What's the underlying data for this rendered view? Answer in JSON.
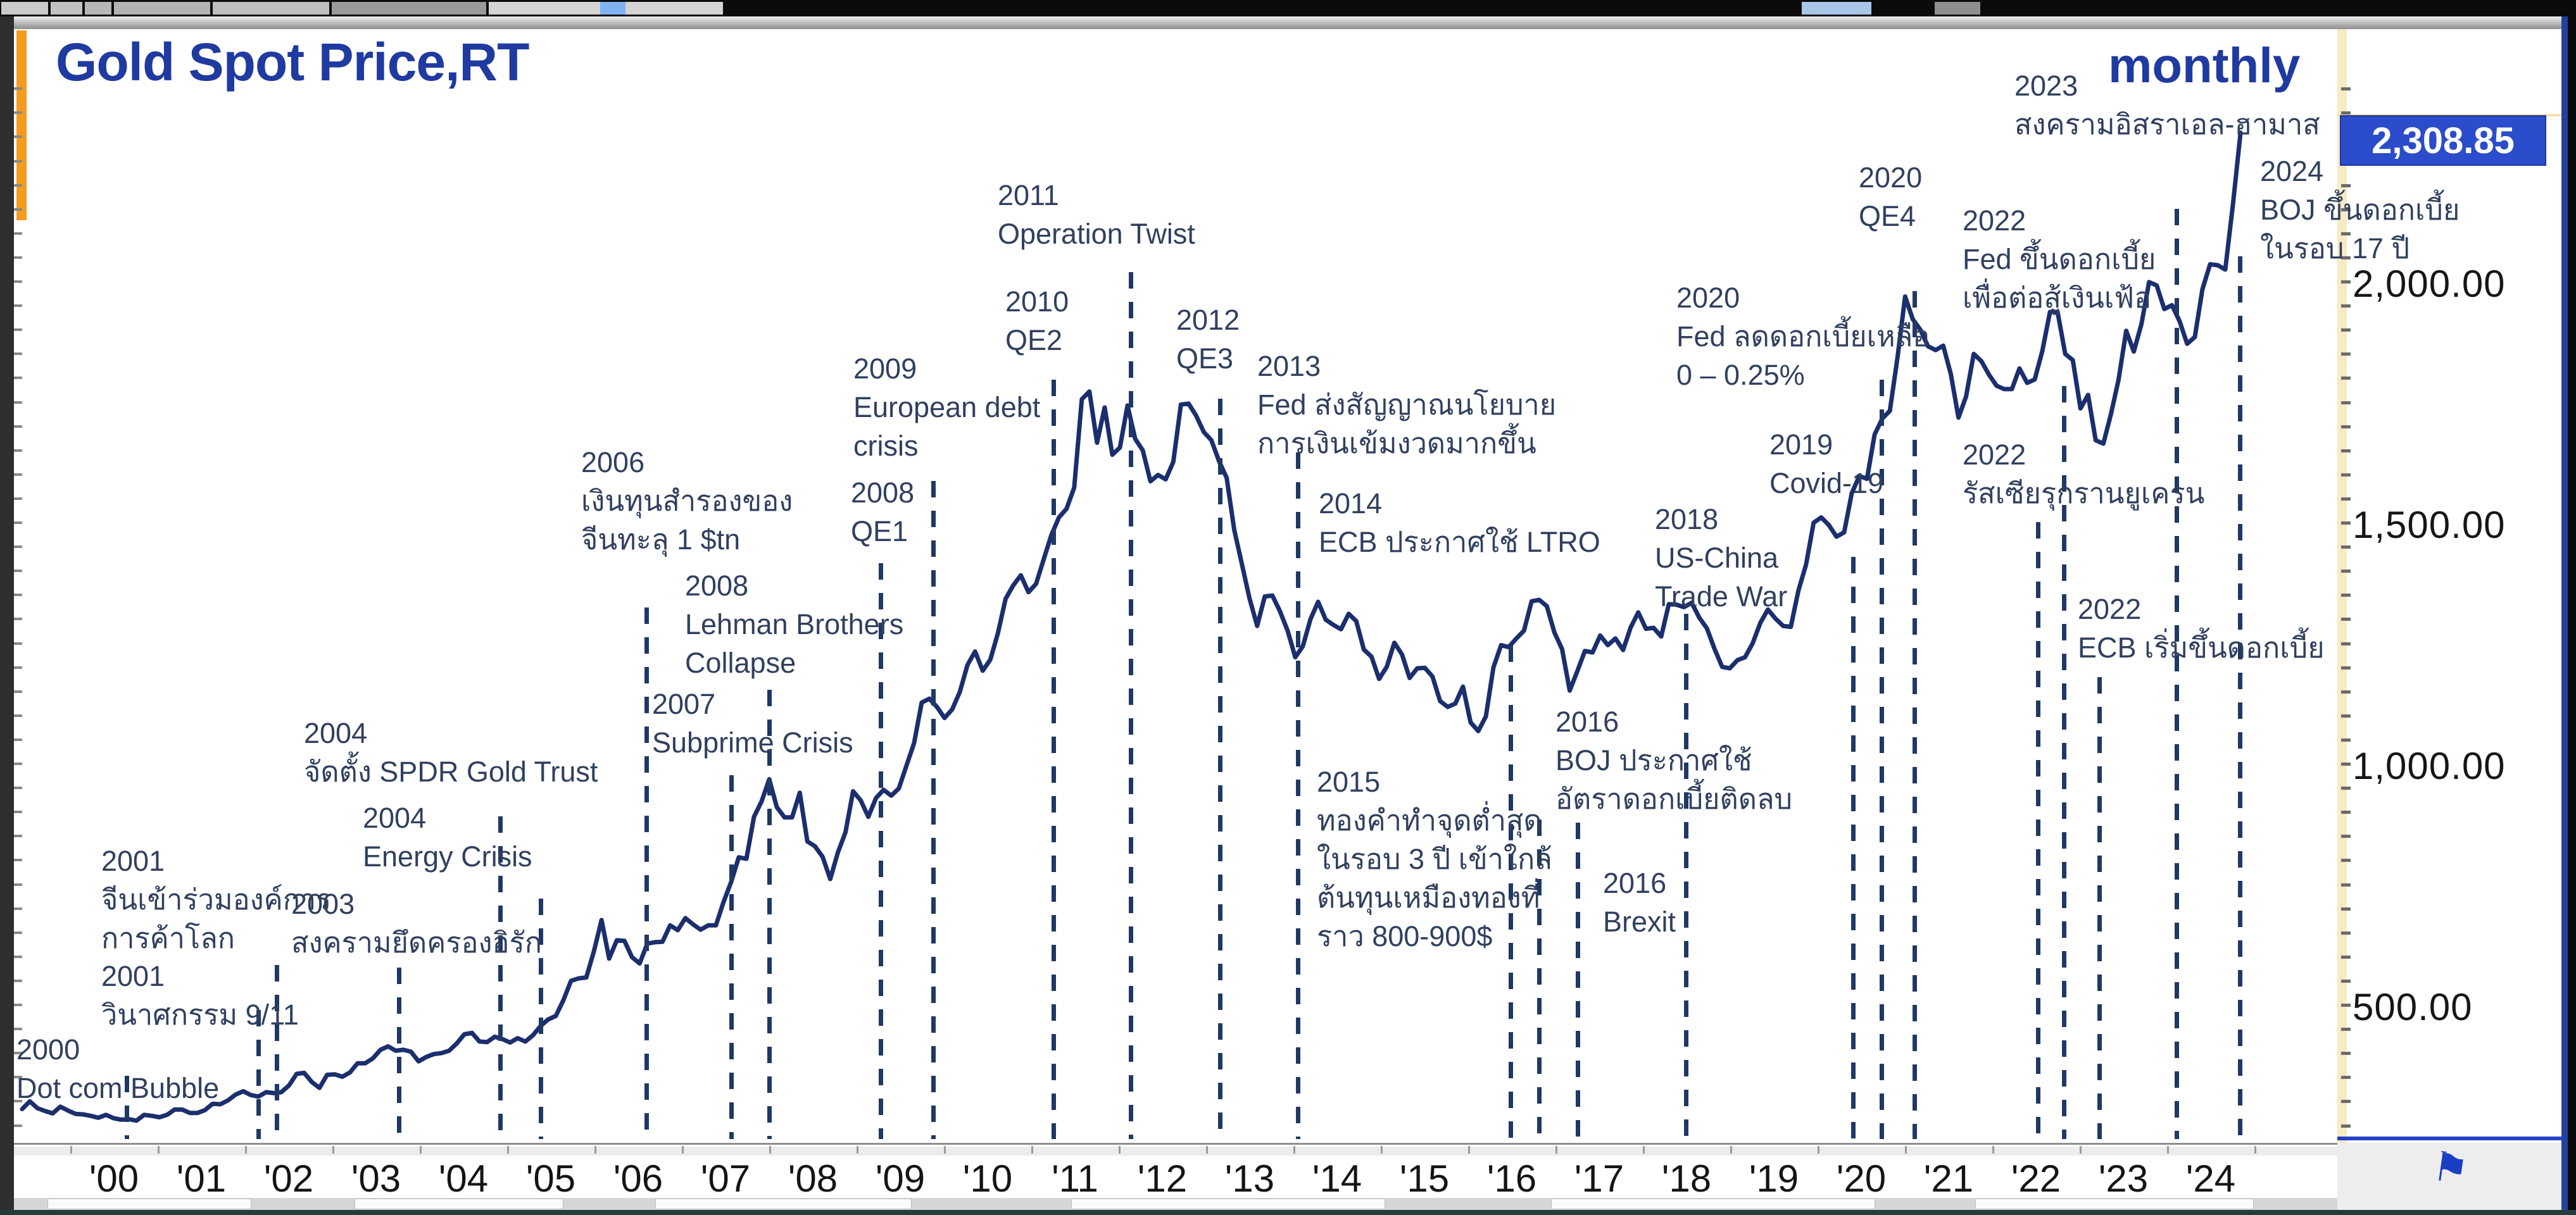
{
  "window": {
    "interval_label": "monthly"
  },
  "colors": {
    "accent_orange": "#F59B22",
    "title_blue": "#1F3AA0",
    "line_navy": "#1B2E6E",
    "marker_navy": "#1F3864",
    "annotation_text": "#31405F",
    "price_tag_bg": "#2B4CCB",
    "price_scale_band": "#F7EBC3"
  },
  "chart_data": {
    "type": "line",
    "title": "Gold Spot Price,RT",
    "interval": "monthly",
    "series_name": "Gold Spot Price",
    "last_price": "2,308.85",
    "legend_position": "none",
    "grid": false,
    "x_range_years": [
      2000.0,
      2024.33
    ],
    "x_axis_labels": [
      "'00",
      "'01",
      "'02",
      "'03",
      "'04",
      "'05",
      "'06",
      "'07",
      "'08",
      "'09",
      "'10",
      "'11",
      "'12",
      "'13",
      "'14",
      "'15",
      "'16",
      "'17",
      "'18",
      "'19",
      "'20",
      "'21",
      "'22",
      "'23",
      "'24"
    ],
    "y_axis": {
      "ticks": [
        {
          "label": "2,000.00",
          "value": 2000
        },
        {
          "label": "1,500.00",
          "value": 1500
        },
        {
          "label": "1,000.00",
          "value": 1000
        },
        {
          "label": "500.00",
          "value": 500
        }
      ],
      "minor_tick_step": 50,
      "ylim": [
        220,
        2420
      ]
    },
    "monthly_prices": {
      "2000": [
        284,
        300,
        286,
        280,
        275,
        289,
        281,
        274,
        273,
        270,
        266,
        272
      ],
      "2001": [
        265,
        262,
        263,
        260,
        272,
        270,
        267,
        272,
        283,
        283,
        276,
        276
      ],
      "2002": [
        282,
        295,
        294,
        302,
        314,
        321,
        313,
        310,
        319,
        317,
        319,
        333
      ],
      "2003": [
        357,
        359,
        340,
        328,
        355,
        356,
        351,
        360,
        379,
        379,
        389,
        407
      ],
      "2004": [
        414,
        405,
        407,
        403,
        383,
        392,
        398,
        400,
        405,
        420,
        439,
        442
      ],
      "2005": [
        424,
        423,
        434,
        429,
        422,
        431,
        424,
        437,
        456,
        470,
        477,
        510
      ],
      "2006": [
        550,
        555,
        557,
        611,
        676,
        596,
        634,
        633,
        599,
        586,
        627,
        630
      ],
      "2007": [
        631,
        665,
        655,
        680,
        667,
        656,
        665,
        665,
        713,
        755,
        806,
        803
      ],
      "2008": [
        890,
        922,
        968,
        910,
        889,
        889,
        940,
        839,
        829,
        807,
        761,
        816
      ],
      "2009": [
        858,
        943,
        924,
        890,
        929,
        946,
        934,
        949,
        996,
        1043,
        1127,
        1135
      ],
      "2010": [
        1118,
        1095,
        1113,
        1149,
        1205,
        1233,
        1193,
        1216,
        1271,
        1342,
        1370,
        1391
      ],
      "2011": [
        1356,
        1373,
        1424,
        1474,
        1511,
        1529,
        1573,
        1756,
        1772,
        1666,
        1739,
        1641
      ],
      "2012": [
        1656,
        1743,
        1674,
        1650,
        1586,
        1599,
        1590,
        1626,
        1745,
        1747,
        1722,
        1688
      ],
      "2013": [
        1671,
        1628,
        1593,
        1485,
        1414,
        1343,
        1286,
        1347,
        1349,
        1316,
        1276,
        1221
      ],
      "2014": [
        1244,
        1300,
        1336,
        1299,
        1288,
        1279,
        1311,
        1296,
        1237,
        1222,
        1176,
        1201
      ],
      "2015": [
        1251,
        1227,
        1178,
        1198,
        1199,
        1181,
        1130,
        1118,
        1125,
        1160,
        1086,
        1068
      ],
      "2016": [
        1098,
        1200,
        1246,
        1242,
        1260,
        1276,
        1337,
        1340,
        1327,
        1272,
        1238,
        1152
      ],
      "2017": [
        1192,
        1234,
        1231,
        1266,
        1246,
        1260,
        1236,
        1283,
        1314,
        1280,
        1282,
        1264
      ],
      "2018": [
        1331,
        1330,
        1325,
        1334,
        1303,
        1281,
        1238,
        1201,
        1198,
        1215,
        1221,
        1250
      ],
      "2019": [
        1292,
        1320,
        1301,
        1286,
        1284,
        1359,
        1413,
        1500,
        1511,
        1495,
        1471,
        1480
      ],
      "2020": [
        1561,
        1597,
        1591,
        1683,
        1716,
        1732,
        1843,
        1969,
        1922,
        1900,
        1866,
        1858
      ],
      "2021": [
        1867,
        1808,
        1718,
        1762,
        1850,
        1835,
        1807,
        1784,
        1777,
        1777,
        1820,
        1790
      ],
      "2022": [
        1797,
        1856,
        1937,
        1937,
        1850,
        1837,
        1737,
        1765,
        1671,
        1664,
        1725,
        1797
      ],
      "2023": [
        1898,
        1855,
        1912,
        1999,
        1992,
        1943,
        1951,
        1918,
        1871,
        1885,
        1984,
        2036
      ],
      "2024": [
        2034,
        2025,
        2160,
        2308.85
      ]
    },
    "annotations": [
      {
        "year": "2000",
        "lines": [
          "Dot com Bubble"
        ],
        "x": 26,
        "y": 1628,
        "marker": {
          "x": 197,
          "y1": 1700
        }
      },
      {
        "year": "2001",
        "lines": [
          "จีนเข้าร่วมองค์การ",
          "การค้าโลก"
        ],
        "x": 160,
        "y": 1330,
        "marker": {
          "x": 405,
          "y1": 1596
        }
      },
      {
        "year": "2001",
        "lines": [
          "วินาศกรรม 9/11"
        ],
        "x": 160,
        "y": 1512,
        "marker": {
          "x": 434,
          "y1": 1525
        }
      },
      {
        "year": "2003",
        "lines": [
          "สงครามยึดครองอิรัก"
        ],
        "x": 460,
        "y": 1398,
        "marker": {
          "x": 627,
          "y1": 1529
        }
      },
      {
        "year": "2004",
        "lines": [
          "จัดตั้ง SPDR Gold Trust"
        ],
        "x": 480,
        "y": 1128,
        "marker": {
          "x": 787,
          "y1": 1290
        }
      },
      {
        "year": "2004",
        "lines": [
          "Energy Crisis"
        ],
        "x": 573,
        "y": 1262,
        "marker": {
          "x": 851,
          "y1": 1420
        }
      },
      {
        "year": "2006",
        "lines": [
          "เงินทุนสำรองของ",
          "จีนทะลุ 1 $tn"
        ],
        "x": 918,
        "y": 700,
        "marker": {
          "x": 1018,
          "y1": 960
        }
      },
      {
        "year": "2007",
        "lines": [
          "Subprime Crisis"
        ],
        "x": 1030,
        "y": 1082,
        "marker": {
          "x": 1152,
          "y1": 1225
        }
      },
      {
        "year": "2008",
        "lines": [
          "Lehman Brothers",
          "Collapse"
        ],
        "x": 1082,
        "y": 895,
        "marker": {
          "x": 1212,
          "y1": 1090
        }
      },
      {
        "year": "2008",
        "lines": [
          "QE1"
        ],
        "x": 1344,
        "y": 748,
        "marker": {
          "x": 1388,
          "y1": 890
        }
      },
      {
        "year": "2009",
        "lines": [
          "European debt",
          "crisis"
        ],
        "x": 1348,
        "y": 552,
        "marker": {
          "x": 1471,
          "y1": 760
        }
      },
      {
        "year": "2010",
        "lines": [
          "QE2"
        ],
        "x": 1588,
        "y": 446,
        "marker": {
          "x": 1661,
          "y1": 600
        }
      },
      {
        "year": "2011",
        "lines": [
          "Operation Twist"
        ],
        "x": 1576,
        "y": 278,
        "marker": {
          "x": 1783,
          "y1": 430
        }
      },
      {
        "year": "2012",
        "lines": [
          "QE3"
        ],
        "x": 1858,
        "y": 475,
        "marker": {
          "x": 1924,
          "y1": 630
        }
      },
      {
        "year": "2013",
        "lines": [
          "Fed ส่งสัญญาณนโยบาย",
          "การเงินเข้มงวดมากขึ้น"
        ],
        "x": 1986,
        "y": 548,
        "marker": {
          "x": 2047,
          "y1": 715
        }
      },
      {
        "year": "2014",
        "lines": [
          "ECB ประกาศใช้ LTRO"
        ],
        "x": 2083,
        "y": 765,
        "marker": null
      },
      {
        "year": "2015",
        "lines": [
          "ทองคำทำจุดต่ำสุด",
          "ในรอบ 3 ปี เข้าใกล้",
          "ต้นทุนเหมืองทองที่",
          "ราว 800-900$"
        ],
        "x": 2080,
        "y": 1205,
        "marker": {
          "x": 2383,
          "y1": 1020
        }
      },
      {
        "year": "2016",
        "lines": [
          "BOJ ประกาศใช้",
          "อัตราดอกเบี้ยติดลบ"
        ],
        "x": 2457,
        "y": 1110,
        "marker": {
          "x": 2428,
          "y1": 1295
        }
      },
      {
        "year": "2016",
        "lines": [
          "Brexit"
        ],
        "x": 2532,
        "y": 1365,
        "marker": {
          "x": 2489,
          "y1": 1300
        }
      },
      {
        "year": "2018",
        "lines": [
          "US-China",
          "Trade War"
        ],
        "x": 2614,
        "y": 790,
        "marker": {
          "x": 2660,
          "y1": 970
        }
      },
      {
        "year": "2019",
        "lines": [
          "Covid-19"
        ],
        "x": 2795,
        "y": 672,
        "marker": {
          "x": 2924,
          "y1": 880
        }
      },
      {
        "year": "2020",
        "lines": [
          "Fed ลดดอกเบี้ยเหลือ",
          "0 – 0.25%"
        ],
        "x": 2648,
        "y": 440,
        "marker": {
          "x": 2969,
          "y1": 600
        }
      },
      {
        "year": "2020",
        "lines": [
          "QE4"
        ],
        "x": 2936,
        "y": 250,
        "marker": {
          "x": 3021,
          "y1": 460
        }
      },
      {
        "year": "2022",
        "lines": [
          "Fed ขึ้นดอกเบี้ย",
          "เพื่อต่อสู้เงินเฟ้อ"
        ],
        "x": 3100,
        "y": 318,
        "marker": {
          "x": 3257,
          "y1": 610
        }
      },
      {
        "year": "2022",
        "lines": [
          "รัสเซียรุกรานยูเครน"
        ],
        "x": 3100,
        "y": 688,
        "marker": {
          "x": 3216,
          "y1": 825
        }
      },
      {
        "year": "2022",
        "lines": [
          "ECB เริ่มขึ้นดอกเบี้ย"
        ],
        "x": 3282,
        "y": 932,
        "marker": {
          "x": 3313,
          "y1": 1070
        }
      },
      {
        "year": "2023",
        "lines": [
          "สงครามอิสราเอล-ฮามาส"
        ],
        "x": 3182,
        "y": 105,
        "marker": {
          "x": 3435,
          "y1": 330
        }
      },
      {
        "year": "2024",
        "lines": [
          "BOJ ขึ้นดอกเบี้ย",
          "ในรอบ 17 ปี"
        ],
        "x": 3570,
        "y": 240,
        "marker": {
          "x": 3535,
          "y1": 405
        }
      }
    ]
  }
}
